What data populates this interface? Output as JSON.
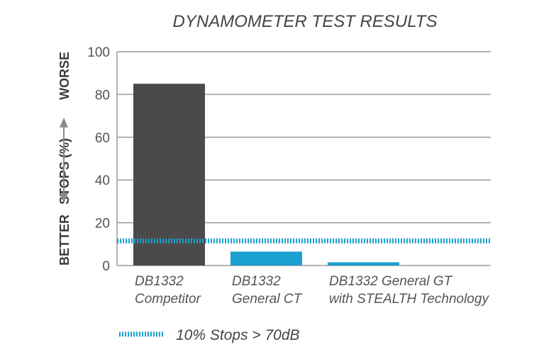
{
  "chart_data": {
    "type": "bar",
    "title": "DYNAMOMETER TEST RESULTS",
    "ylabel": "STOPS (%)",
    "y_better_label": "BETTER",
    "y_worse_label": "WORSE",
    "ylim": [
      0,
      100
    ],
    "yticks": [
      "0",
      "20",
      "40",
      "60",
      "80",
      "100"
    ],
    "grid": true,
    "categories": [
      [
        "DB1332",
        "Competitor"
      ],
      [
        "DB1332",
        "General CT"
      ],
      [
        "DB1332 General GT",
        "with STEALTH Technology"
      ]
    ],
    "values": [
      85,
      6.5,
      1.5
    ],
    "bar_colors": [
      "#4a4a4a",
      "#1b9fce",
      "#1b9fce"
    ],
    "reference_line": {
      "value": 11.5,
      "label": "10% Stops > 70dB",
      "color": "#1b9fce"
    },
    "legend_position": "bottom-left"
  }
}
